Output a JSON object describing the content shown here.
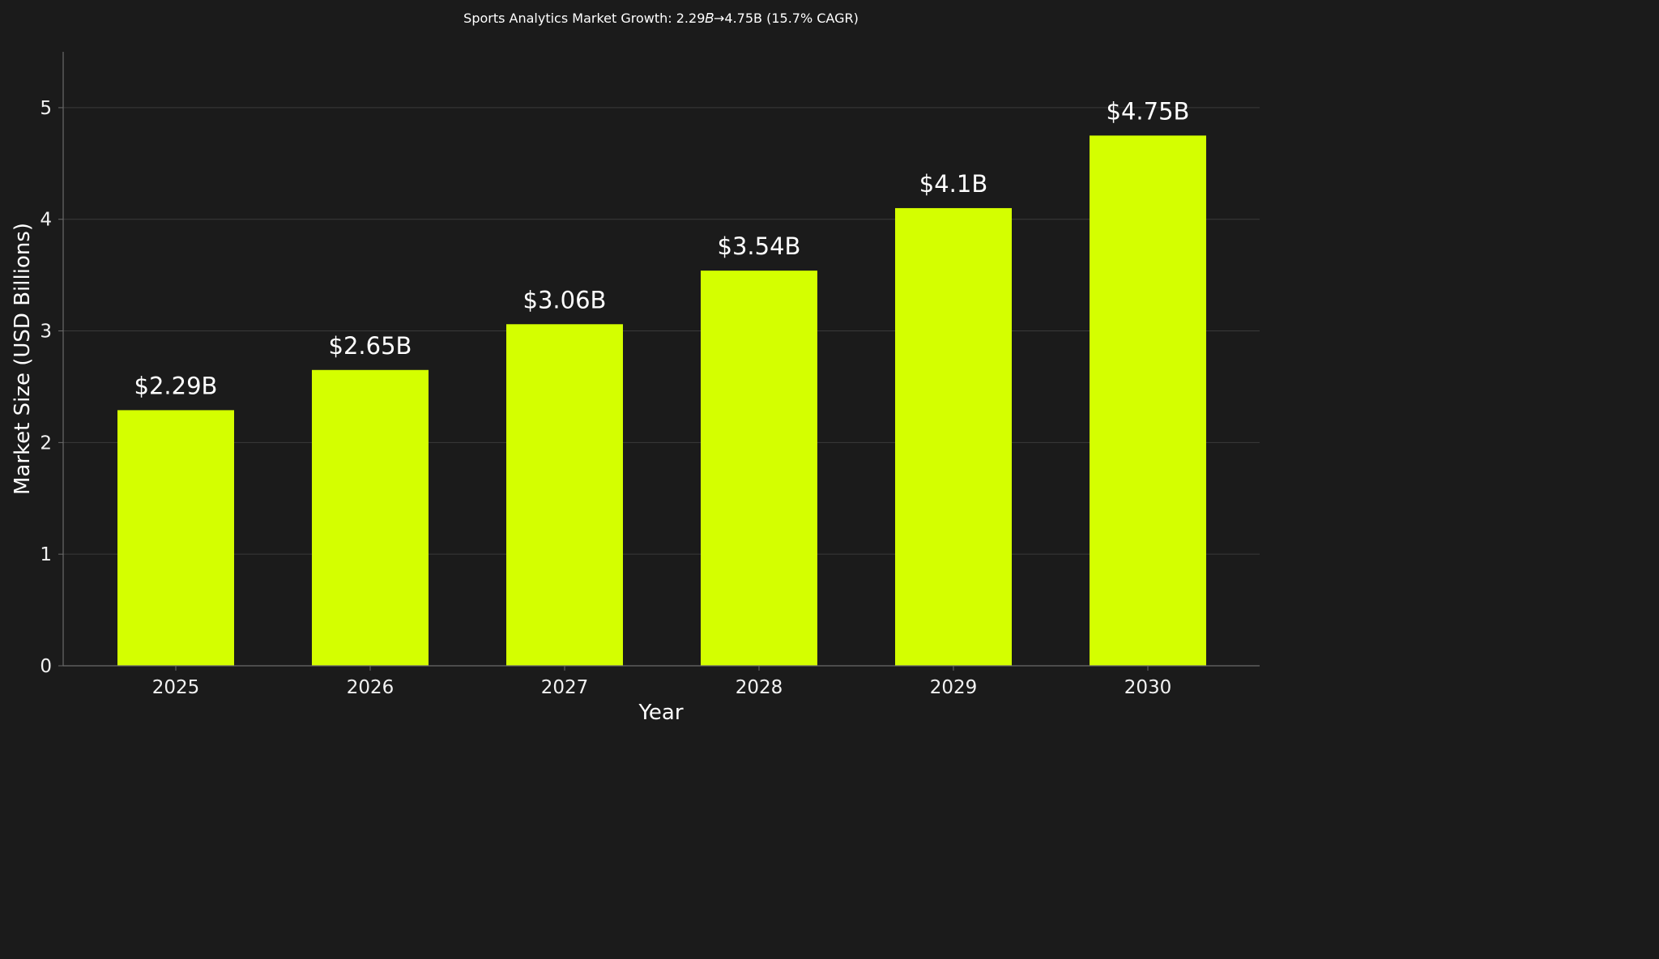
{
  "chart_data": {
    "type": "bar",
    "title": "Sports Analytics Market Growth: 2.29𝐵→4.75B (15.7% CAGR)",
    "xlabel": "Year",
    "ylabel": "Market Size (USD Billions)",
    "categories": [
      "2025",
      "2026",
      "2027",
      "2028",
      "2029",
      "2030"
    ],
    "values": [
      2.29,
      2.65,
      3.06,
      3.54,
      4.1,
      4.75
    ],
    "data_labels": [
      "$2.29B",
      "$2.65B",
      "$3.06B",
      "$3.54B",
      "$4.1B",
      "$4.75B"
    ],
    "ylim": [
      0,
      5.5
    ],
    "yticks": [
      "0",
      "1",
      "2",
      "3",
      "4",
      "5"
    ],
    "grid": true,
    "colors": {
      "background": "#1b1b1b",
      "bar": "#d4ff00",
      "grid": "#3a3a3a",
      "axis": "#6a6a6a",
      "text": "#ffffff"
    }
  }
}
